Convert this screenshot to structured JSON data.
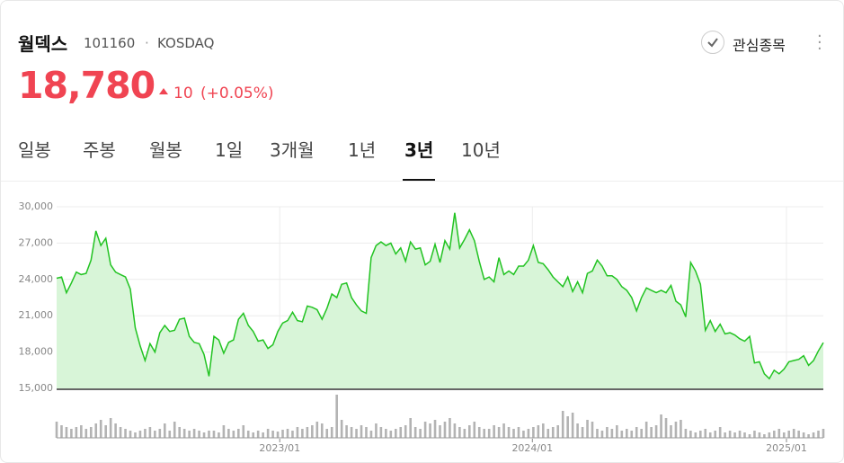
{
  "header": {
    "name": "월덱스",
    "code": "101160",
    "market": "KOSDAQ",
    "price": "18,780",
    "change": "10",
    "change_pct": "(+0.05%)",
    "watch": "관심종목"
  },
  "tabs": {
    "items": [
      "일봉",
      "주봉",
      "월봉",
      "1일",
      "3개월",
      "1년",
      "3년",
      "10년"
    ],
    "active": 6
  },
  "chart_data": {
    "type": "line",
    "series": [
      {
        "color": "#22c322",
        "fill": "#d8f5d8",
        "values": [
          24100,
          24200,
          22900,
          23700,
          24600,
          24400,
          24500,
          25600,
          28000,
          26800,
          27400,
          25200,
          24600,
          24400,
          24200,
          23200,
          20000,
          18500,
          17300,
          18700,
          18000,
          19600,
          20200,
          19700,
          19800,
          20700,
          20800,
          19300,
          18800,
          18700,
          17800,
          16000,
          19300,
          19000,
          17900,
          18800,
          19000,
          20700,
          21200,
          20200,
          19700,
          18900,
          19000,
          18300,
          18600,
          19700,
          20400,
          20600,
          21300,
          20600,
          20500,
          21800,
          21700,
          21500,
          20700,
          21600,
          22800,
          22500,
          23600,
          23700,
          22500,
          21900,
          21400,
          21200,
          25800,
          26800,
          27100,
          26800,
          27000,
          26100,
          26600,
          25500,
          27100,
          26500,
          26600,
          25200,
          25500,
          26900,
          25400,
          27200,
          26500,
          29500,
          26600,
          27300,
          28100,
          27200,
          25500,
          24000,
          24200,
          23800,
          25800,
          24400,
          24700,
          24400,
          25100,
          25100,
          25600,
          26800,
          25400,
          25300,
          24800,
          24200,
          23800,
          23400,
          24200,
          23000,
          23800,
          22900,
          24500,
          24700,
          25600,
          25100,
          24300,
          24300,
          24000,
          23400,
          23100,
          22500,
          21400,
          22500,
          23300,
          23100,
          22900,
          23100,
          22900,
          23500,
          22200,
          21900,
          20900,
          25400,
          24700,
          23600,
          19800,
          20600,
          19700,
          20300,
          19500,
          19600,
          19400,
          19100,
          18900,
          19300,
          17100,
          17200,
          16200,
          15800,
          16500,
          16200,
          16600,
          17200,
          17300,
          17400,
          17700,
          16900,
          17300,
          18100,
          18780
        ]
      }
    ],
    "volume": {
      "color": "#b3b3b3",
      "values": [
        18,
        14,
        12,
        10,
        12,
        14,
        10,
        12,
        16,
        20,
        14,
        22,
        16,
        12,
        10,
        8,
        6,
        8,
        10,
        12,
        8,
        10,
        16,
        8,
        18,
        12,
        10,
        8,
        10,
        8,
        6,
        8,
        8,
        6,
        14,
        10,
        8,
        10,
        14,
        8,
        6,
        8,
        6,
        10,
        8,
        7,
        9,
        10,
        8,
        12,
        10,
        12,
        14,
        18,
        16,
        10,
        12,
        48,
        20,
        14,
        12,
        10,
        14,
        12,
        8,
        16,
        12,
        10,
        8,
        10,
        12,
        14,
        22,
        12,
        10,
        18,
        16,
        20,
        14,
        18,
        22,
        16,
        12,
        10,
        14,
        18,
        12,
        10,
        10,
        14,
        12,
        16,
        12,
        10,
        12,
        8,
        10,
        12,
        14,
        16,
        10,
        12,
        14,
        30,
        24,
        28,
        16,
        12,
        20,
        18,
        10,
        8,
        12,
        10,
        14,
        8,
        10,
        8,
        12,
        10,
        18,
        12,
        14,
        26,
        22,
        14,
        18,
        20,
        10,
        8,
        6,
        8,
        10,
        6,
        8,
        12,
        6,
        8,
        6,
        8,
        6,
        4,
        8,
        6,
        4,
        6,
        8,
        10,
        6,
        8,
        10,
        8,
        6,
        4,
        6,
        8,
        10
      ]
    },
    "xlim": [
      0,
      156
    ],
    "xticks": [
      {
        "value": 45.4,
        "label": "2023/01"
      },
      {
        "value": 96.8,
        "label": "2024/01"
      },
      {
        "value": 148.5,
        "label": "2025/01"
      }
    ],
    "ylim": [
      15000,
      30000
    ],
    "yticks": [
      {
        "value": 15000,
        "label": "15,000"
      },
      {
        "value": 18000,
        "label": "18,000"
      },
      {
        "value": 21000,
        "label": "21,000"
      },
      {
        "value": 24000,
        "label": "24,000"
      },
      {
        "value": 27000,
        "label": "27,000"
      },
      {
        "value": 30000,
        "label": "30,000"
      }
    ],
    "grid": true
  }
}
